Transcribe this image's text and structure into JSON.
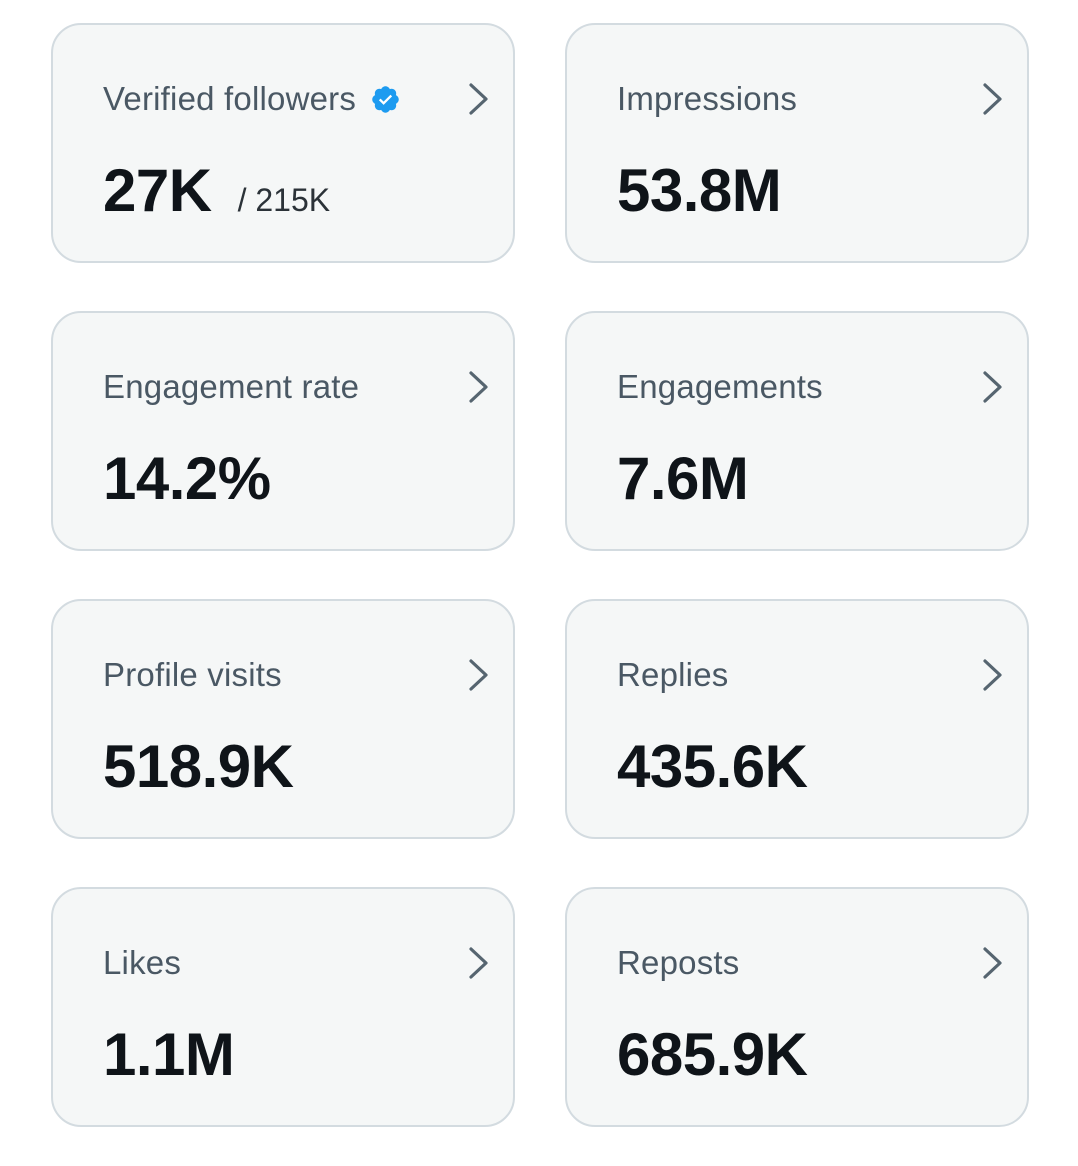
{
  "colors": {
    "card_background": "#f5f7f7",
    "card_border": "#d3dbe0",
    "label": "#4a5864",
    "value": "#0f1419",
    "chevron": "#566570",
    "verified_badge": "#1d9bf0"
  },
  "cards": [
    {
      "label": "Verified followers",
      "value": "27K",
      "sub": "/ 215K",
      "badge_icon": "verified-badge-icon",
      "chevron_icon": "chevron-right-icon"
    },
    {
      "label": "Impressions",
      "value": "53.8M",
      "chevron_icon": "chevron-right-icon"
    },
    {
      "label": "Engagement rate",
      "value": "14.2%",
      "chevron_icon": "chevron-right-icon"
    },
    {
      "label": "Engagements",
      "value": "7.6M",
      "chevron_icon": "chevron-right-icon"
    },
    {
      "label": "Profile visits",
      "value": "518.9K",
      "chevron_icon": "chevron-right-icon"
    },
    {
      "label": "Replies",
      "value": "435.6K",
      "chevron_icon": "chevron-right-icon"
    },
    {
      "label": "Likes",
      "value": "1.1M",
      "chevron_icon": "chevron-right-icon"
    },
    {
      "label": "Reposts",
      "value": "685.9K",
      "chevron_icon": "chevron-right-icon"
    }
  ]
}
